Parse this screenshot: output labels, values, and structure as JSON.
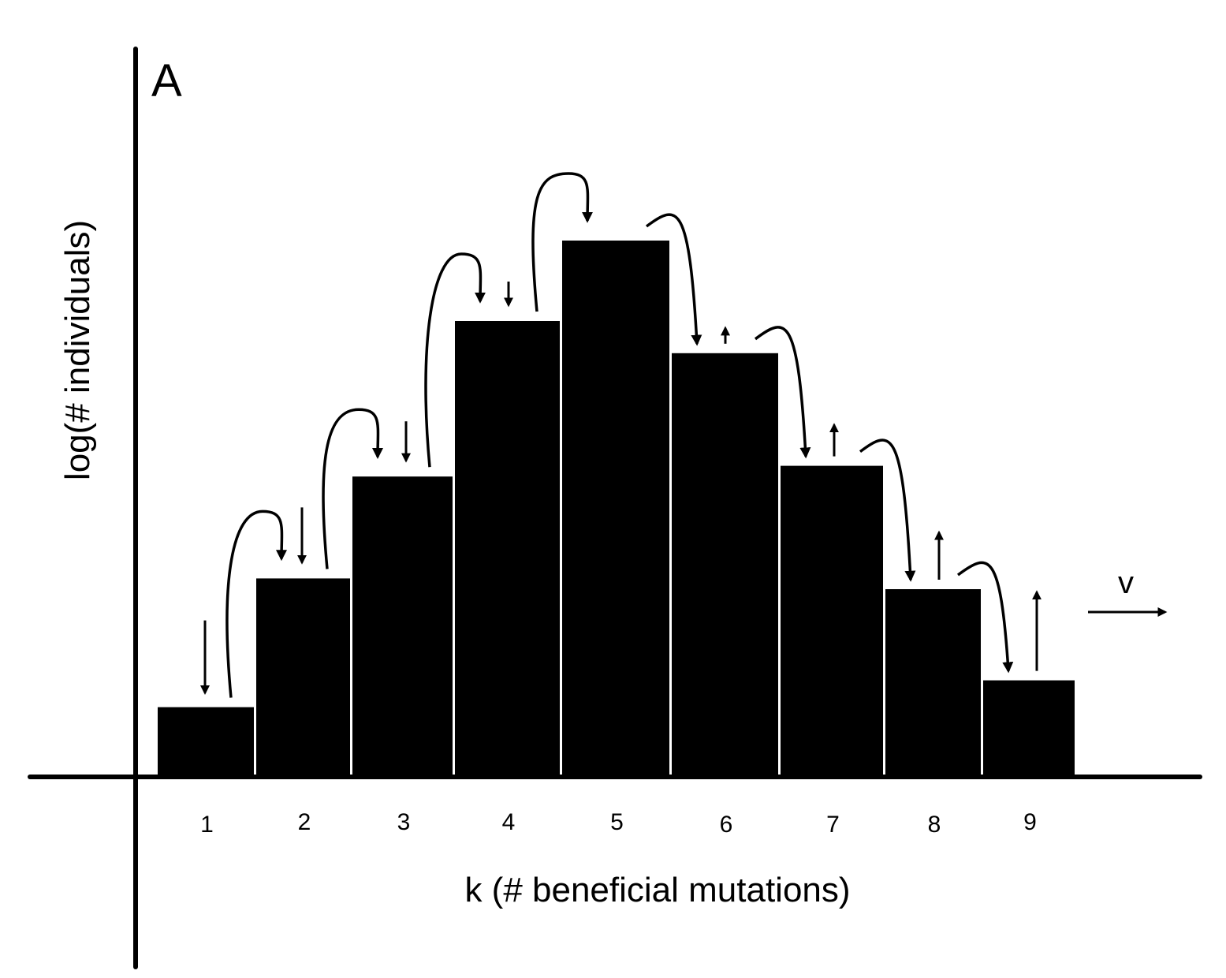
{
  "chart_data": {
    "type": "bar",
    "panel_label": "A",
    "title": "",
    "xlabel": "k (# beneficial mutations)",
    "ylabel": "log(# individuals)",
    "categories": [
      "1",
      "2",
      "3",
      "4",
      "5",
      "6",
      "7",
      "8",
      "9"
    ],
    "values": [
      0.13,
      0.37,
      0.56,
      0.85,
      1.0,
      0.79,
      0.58,
      0.35,
      0.18
    ],
    "ylim": [
      0,
      1.2
    ],
    "grid": false,
    "legend": null,
    "annotations": {
      "velocity_label": "v",
      "velocity_arrow_direction": "right",
      "mutation_flux_arrows": "curved arrows from each bin k to bin k+1",
      "selection_arrows": [
        "down",
        "down",
        "down",
        "down",
        "none",
        "up",
        "up",
        "up",
        "up"
      ]
    },
    "colors": {
      "bar": "#000000",
      "bar_separator": "#ffffff",
      "axes": "#000000"
    }
  }
}
